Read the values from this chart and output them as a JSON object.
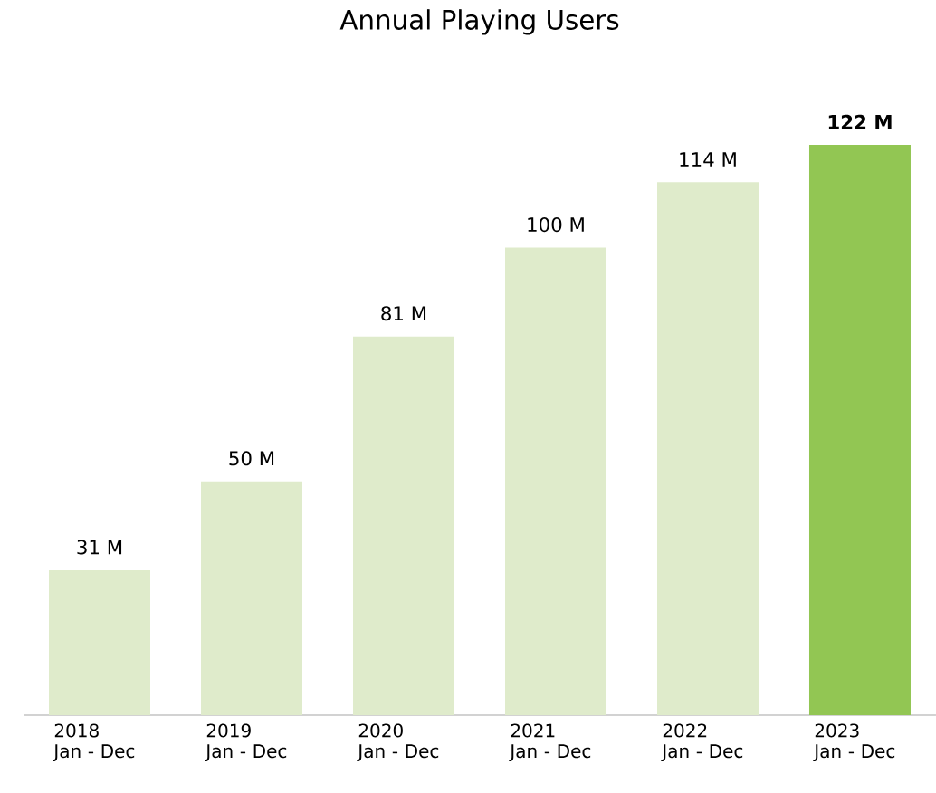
{
  "chart_data": {
    "type": "bar",
    "title": "Annual Playing Users",
    "categories": [
      "2018\nJan - Dec",
      "2019\nJan - Dec",
      "2020\nJan - Dec",
      "2021\nJan - Dec",
      "2022\nJan - Dec",
      "2023\nJan - Dec"
    ],
    "values": [
      31,
      50,
      81,
      100,
      114,
      122
    ],
    "colors": [
      "#dfebcb",
      "#dfebcb",
      "#dfebcb",
      "#dfebcb",
      "#dfebcb",
      "#92c653"
    ],
    "value_labels": [
      "31 M",
      "50 M",
      "81 M",
      "100 M",
      "114 M",
      "**122 M**"
    ]
  }
}
